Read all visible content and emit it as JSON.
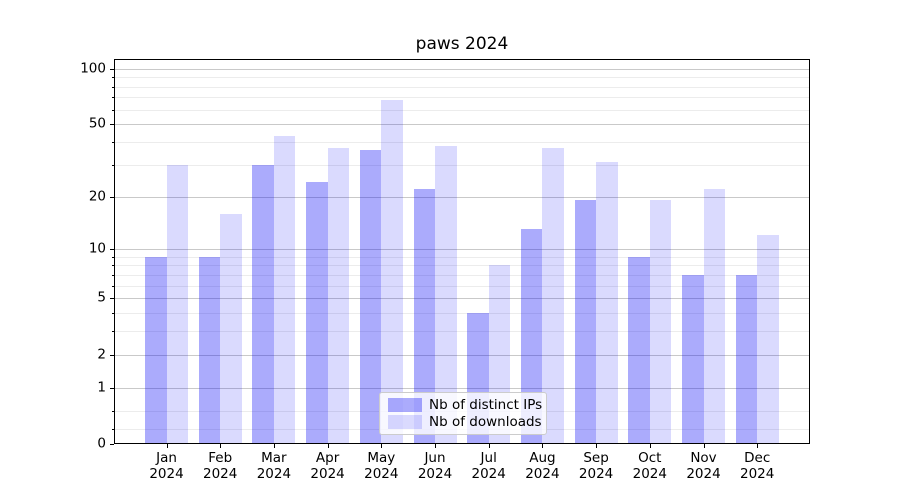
{
  "chart_data": {
    "type": "bar",
    "title": "paws 2024",
    "categories": [
      "Jan",
      "Feb",
      "Mar",
      "Apr",
      "May",
      "Jun",
      "Jul",
      "Aug",
      "Sep",
      "Oct",
      "Nov",
      "Dec"
    ],
    "x_tick_year": "2024",
    "series": [
      {
        "name": "Nb of distinct IPs",
        "color": "rgba(2,2,245,0.335)",
        "values": [
          9,
          9,
          30,
          24,
          36,
          22,
          4,
          13,
          19,
          9,
          7,
          7
        ]
      },
      {
        "name": "Nb of downloads",
        "color": "rgba(2,2,245,0.145)",
        "values": [
          30,
          16,
          43,
          37,
          68,
          38,
          8,
          37,
          31,
          19,
          22,
          12
        ]
      }
    ],
    "yscale": "log1p",
    "ylim": [
      0,
      113
    ],
    "yticks": [
      0,
      1,
      2,
      5,
      10,
      20,
      50,
      100
    ],
    "ytick_labels": [
      "0",
      "1",
      "2",
      "5",
      "10",
      "20",
      "50",
      "100"
    ],
    "minor_yticks": [
      0.2,
      0.5,
      3,
      4,
      6,
      7,
      8,
      9,
      30,
      40,
      60,
      70,
      80,
      90
    ],
    "grid": "horizontal",
    "legend_position": "lower center",
    "colors": {
      "major_grid": "#c9c9c9",
      "minor_grid": "#ececec",
      "axis": "#000000",
      "text": "#000000",
      "background": "#ffffff"
    }
  }
}
